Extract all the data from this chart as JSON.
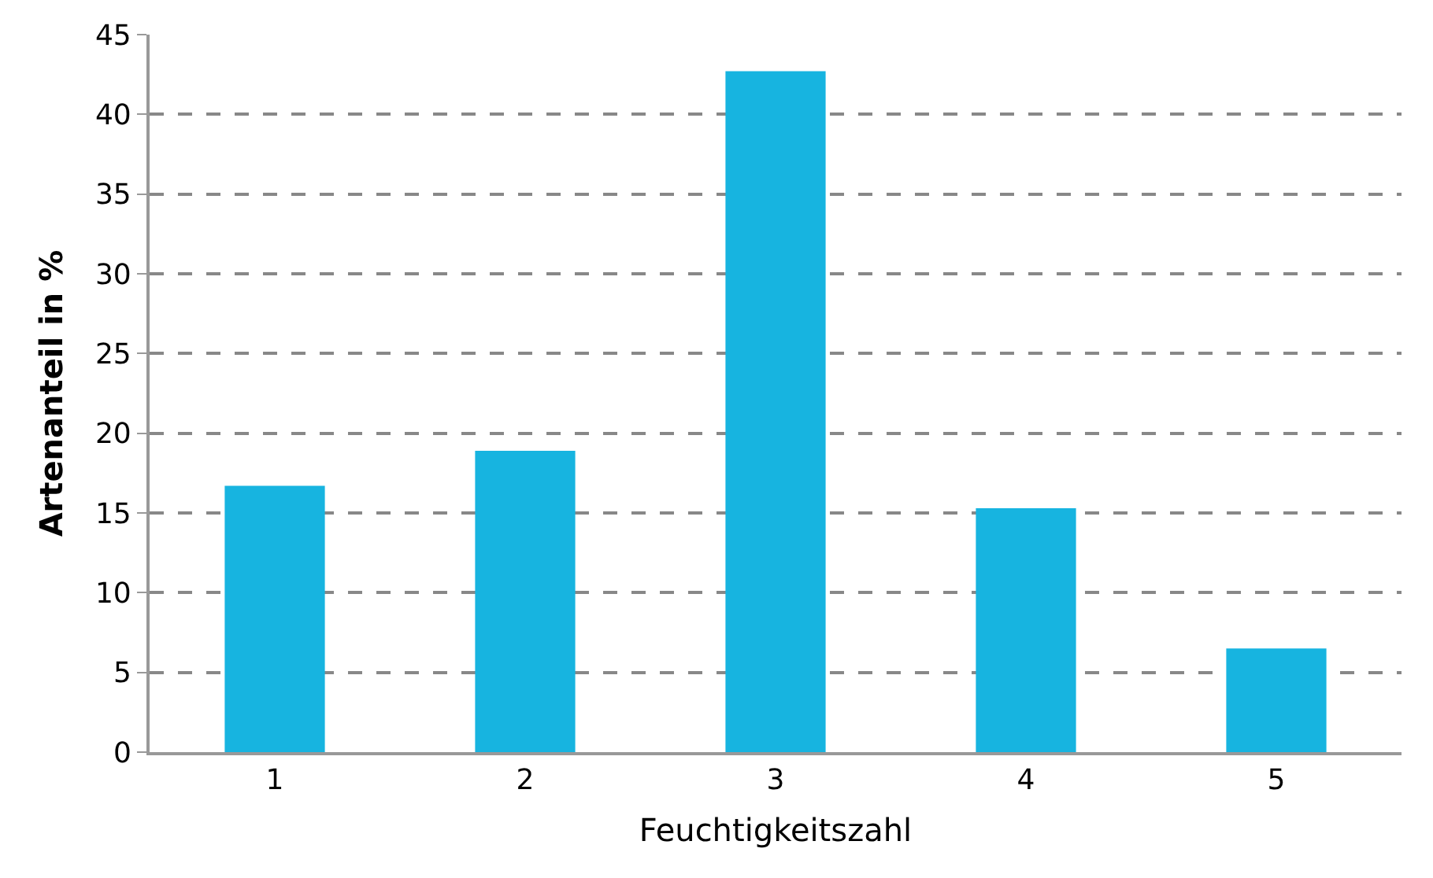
{
  "chart_data": {
    "type": "bar",
    "xlabel": "Feuchtigkeitszahl",
    "ylabel": "Artenanteil in %",
    "categories": [
      "1",
      "2",
      "3",
      "4",
      "5"
    ],
    "values": [
      16.7,
      18.9,
      42.7,
      15.3,
      6.5
    ],
    "color": "#17b4e0",
    "ylim": [
      0,
      45
    ],
    "yticks": [
      0,
      5,
      10,
      15,
      20,
      25,
      30,
      35,
      40,
      45
    ],
    "grid": "y"
  }
}
